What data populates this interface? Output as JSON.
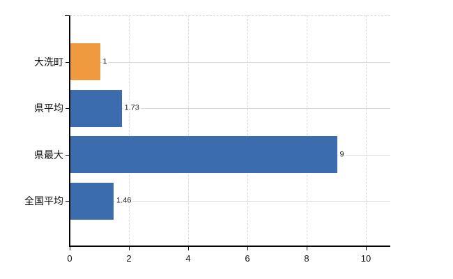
{
  "chart_data": {
    "type": "bar",
    "orientation": "horizontal",
    "title": "",
    "xlabel": "",
    "ylabel": "",
    "categories": [
      "大洗町",
      "県平均",
      "県最大",
      "全国平均"
    ],
    "values": [
      1,
      1.73,
      9,
      1.46
    ],
    "value_labels": [
      "1",
      "1.73",
      "9",
      "1.46"
    ],
    "series": [
      {
        "name": "highlight",
        "color": "#EF9A3E",
        "applies_to": [
          "大洗町"
        ]
      },
      {
        "name": "default",
        "color": "#3B6CAE",
        "applies_to": [
          "県平均",
          "県最大",
          "全国平均"
        ]
      }
    ],
    "bar_colors": [
      "#EF9A3E",
      "#3B6CAE",
      "#3B6CAE",
      "#3B6CAE"
    ],
    "x_ticks": [
      "0",
      "2",
      "4",
      "6",
      "8",
      "10"
    ],
    "x_tick_values": [
      0,
      2,
      4,
      6,
      8,
      10
    ],
    "xlim": [
      0,
      10.8
    ],
    "grid": true,
    "legend_position": "none"
  },
  "colors": {
    "background": "#ffffff",
    "axis": "#000000",
    "gridline": "#d9d9d9",
    "text": "#111111"
  }
}
